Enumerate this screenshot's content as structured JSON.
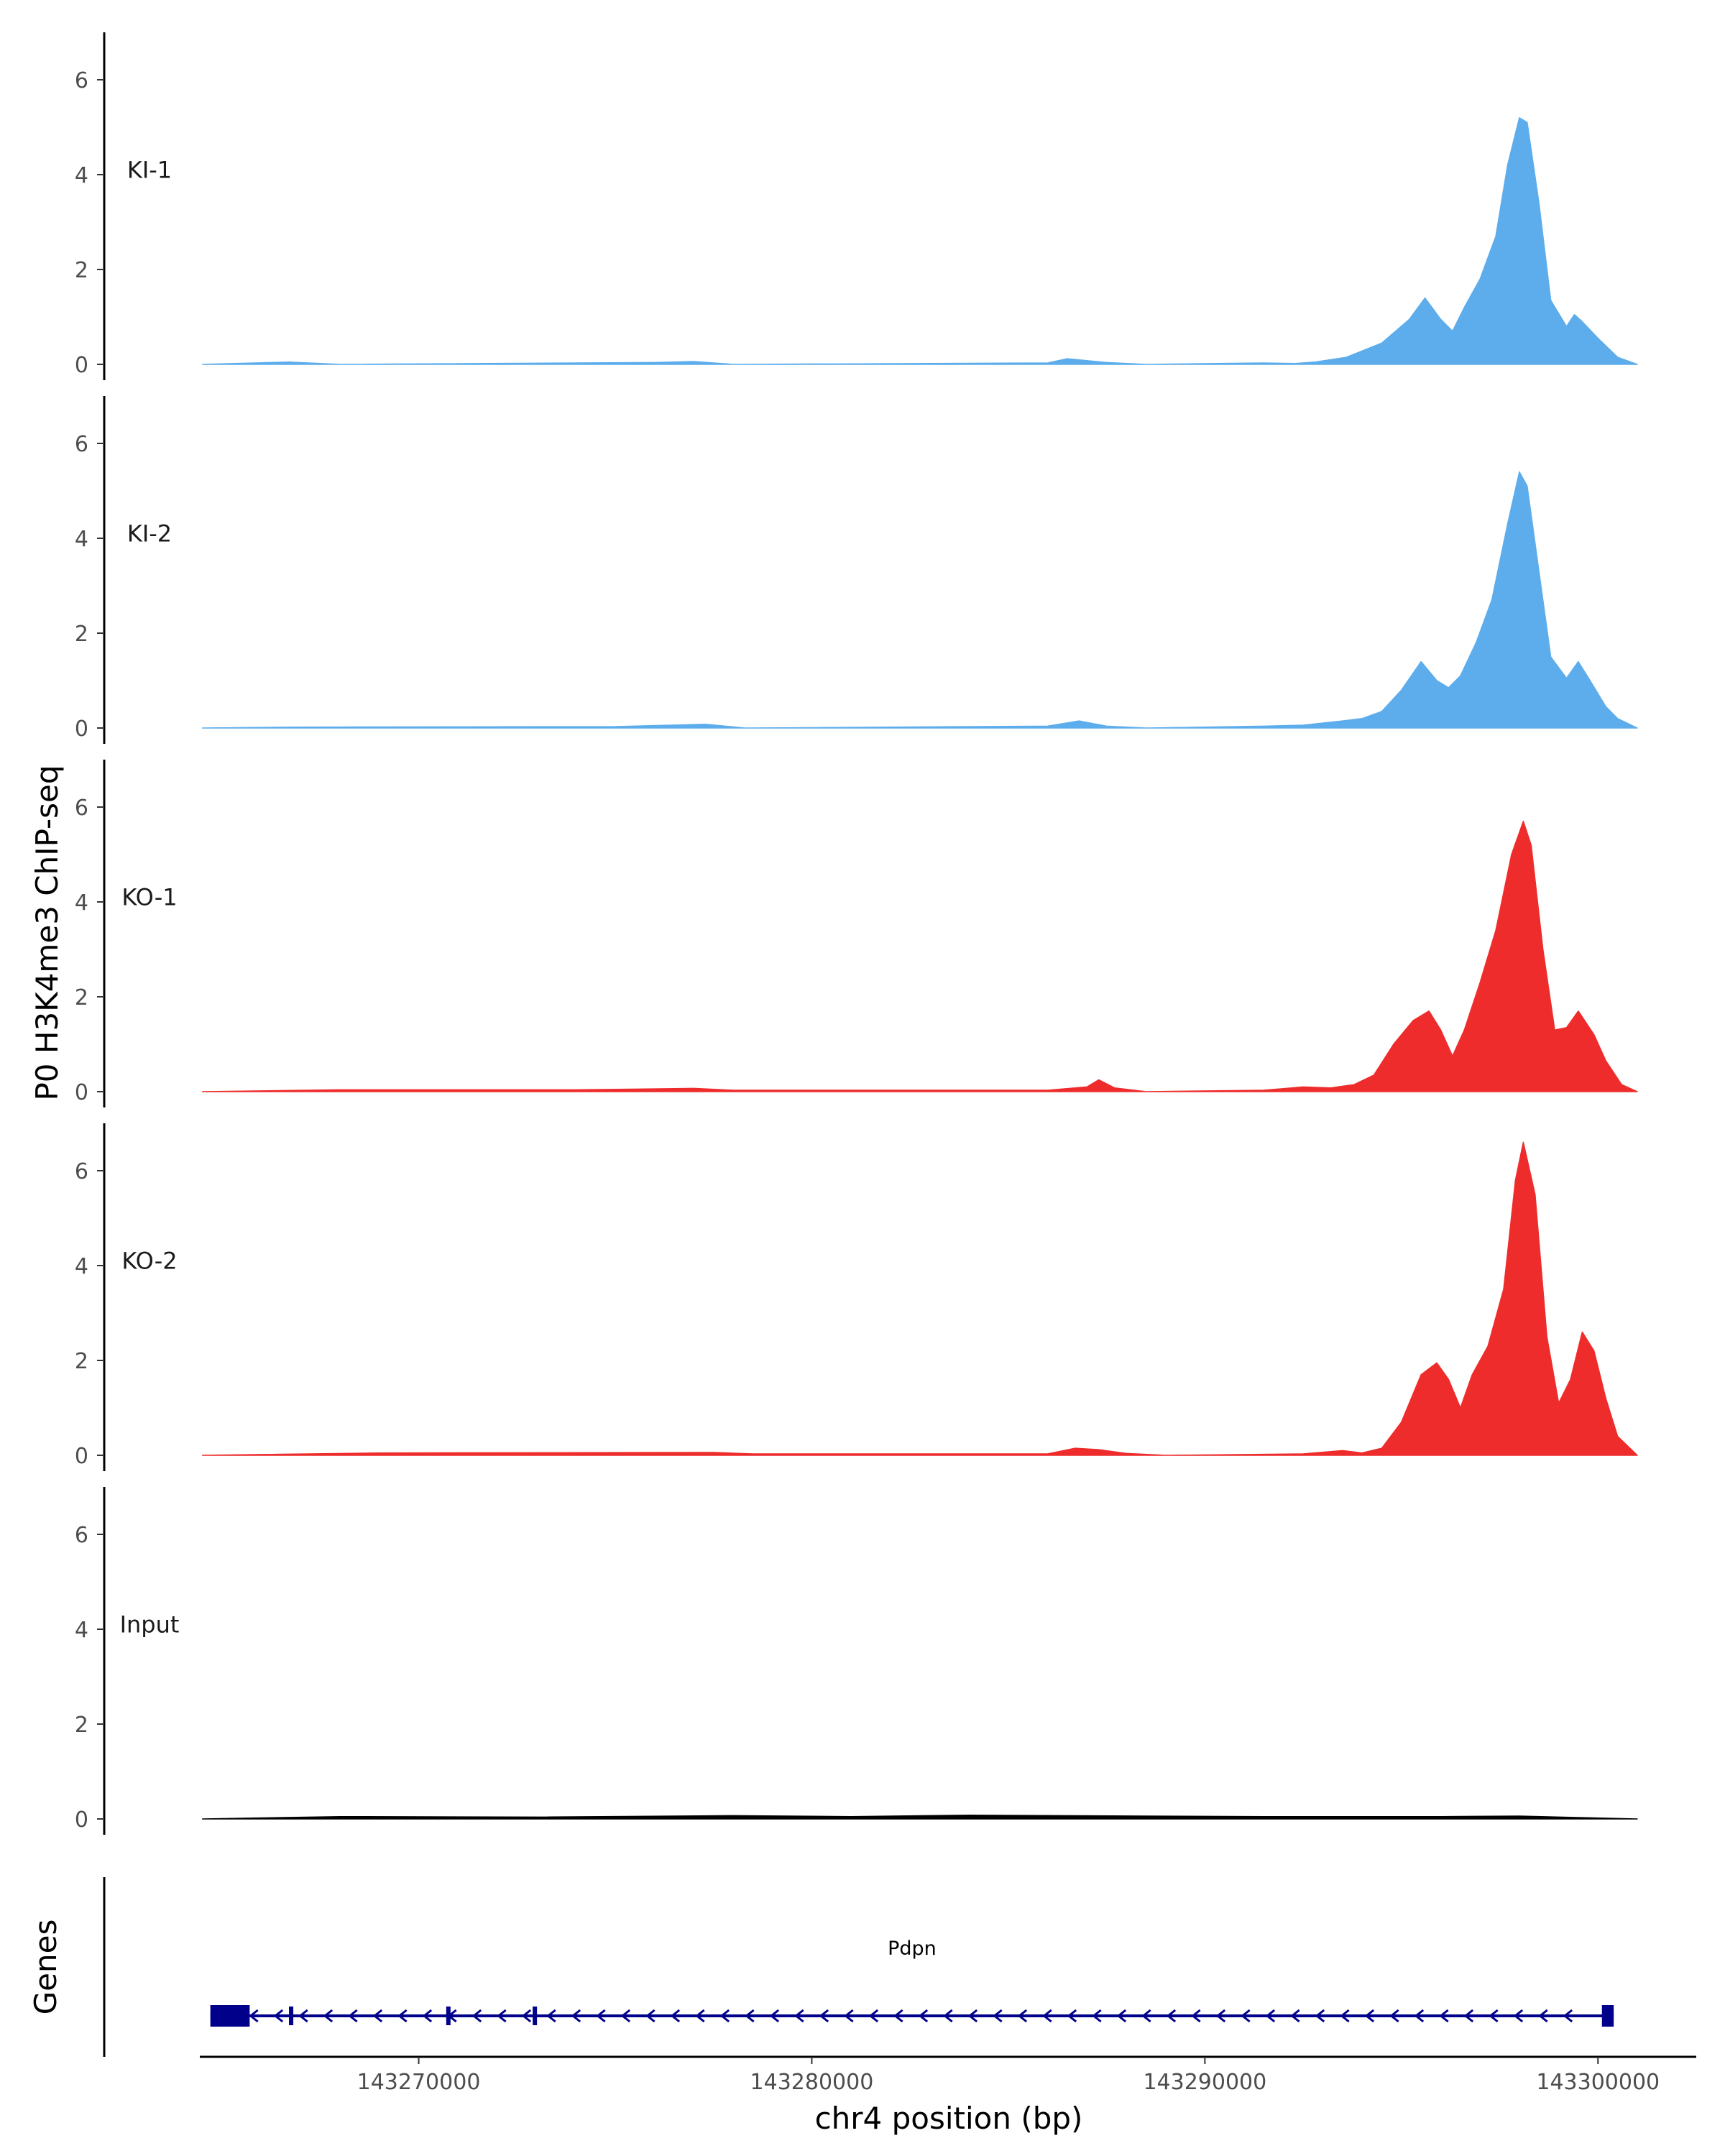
{
  "chart_data": {
    "type": "area",
    "title": "",
    "ylabel": "P0 H3K4me3 ChIP-seq",
    "xlabel": "chr4 position (bp)",
    "xlim": [
      143262000,
      143302500
    ],
    "ylim": [
      0,
      7
    ],
    "yticks": [
      0,
      2,
      4,
      6
    ],
    "xticks": [
      143270000,
      143280000,
      143290000,
      143300000
    ],
    "xtick_labels": [
      "143270000",
      "143280000",
      "143290000",
      "143300000"
    ],
    "signal_range": [
      143264500,
      143301000
    ],
    "tracks": [
      {
        "name": "KI-1",
        "color": "#5DADEC",
        "points": [
          [
            143264500,
            0
          ],
          [
            143266700,
            0.05
          ],
          [
            143268000,
            0
          ],
          [
            143276000,
            0.04
          ],
          [
            143277000,
            0.06
          ],
          [
            143278000,
            0
          ],
          [
            143286000,
            0.03
          ],
          [
            143286500,
            0.12
          ],
          [
            143287500,
            0.04
          ],
          [
            143288500,
            0
          ],
          [
            143291500,
            0.03
          ],
          [
            143292300,
            0.02
          ],
          [
            143292800,
            0.05
          ],
          [
            143293600,
            0.15
          ],
          [
            143294500,
            0.45
          ],
          [
            143295200,
            0.95
          ],
          [
            143295600,
            1.4
          ],
          [
            143296000,
            0.95
          ],
          [
            143296300,
            0.7
          ],
          [
            143296600,
            1.2
          ],
          [
            143297000,
            1.8
          ],
          [
            143297400,
            2.7
          ],
          [
            143297700,
            4.2
          ],
          [
            143298000,
            5.2
          ],
          [
            143298200,
            5.1
          ],
          [
            143298500,
            3.4
          ],
          [
            143298800,
            1.35
          ],
          [
            143299200,
            0.8
          ],
          [
            143299400,
            1.05
          ],
          [
            143299600,
            0.9
          ],
          [
            143300000,
            0.55
          ],
          [
            143300500,
            0.15
          ],
          [
            143301000,
            0
          ]
        ]
      },
      {
        "name": "KI-2",
        "color": "#5DADEC",
        "points": [
          [
            143264500,
            0
          ],
          [
            143267000,
            0.02
          ],
          [
            143275000,
            0.03
          ],
          [
            143277300,
            0.08
          ],
          [
            143278300,
            0
          ],
          [
            143286000,
            0.04
          ],
          [
            143286800,
            0.15
          ],
          [
            143287500,
            0.04
          ],
          [
            143288500,
            0
          ],
          [
            143291500,
            0.04
          ],
          [
            143292500,
            0.06
          ],
          [
            143293500,
            0.15
          ],
          [
            143294000,
            0.2
          ],
          [
            143294500,
            0.35
          ],
          [
            143295000,
            0.8
          ],
          [
            143295500,
            1.4
          ],
          [
            143295900,
            1.0
          ],
          [
            143296200,
            0.85
          ],
          [
            143296500,
            1.1
          ],
          [
            143296900,
            1.8
          ],
          [
            143297300,
            2.7
          ],
          [
            143297700,
            4.3
          ],
          [
            143298000,
            5.4
          ],
          [
            143298200,
            5.1
          ],
          [
            143298500,
            3.3
          ],
          [
            143298800,
            1.5
          ],
          [
            143299200,
            1.05
          ],
          [
            143299500,
            1.4
          ],
          [
            143299800,
            1.0
          ],
          [
            143300200,
            0.45
          ],
          [
            143300500,
            0.2
          ],
          [
            143301000,
            0
          ]
        ]
      },
      {
        "name": "KO-1",
        "color": "#EE2C2C",
        "points": [
          [
            143264500,
            0
          ],
          [
            143268000,
            0.04
          ],
          [
            143274000,
            0.04
          ],
          [
            143277000,
            0.07
          ],
          [
            143278000,
            0.03
          ],
          [
            143286000,
            0.03
          ],
          [
            143287000,
            0.1
          ],
          [
            143287300,
            0.25
          ],
          [
            143287700,
            0.08
          ],
          [
            143288500,
            0
          ],
          [
            143291500,
            0.03
          ],
          [
            143292500,
            0.1
          ],
          [
            143293200,
            0.08
          ],
          [
            143293800,
            0.15
          ],
          [
            143294300,
            0.35
          ],
          [
            143294800,
            1.0
          ],
          [
            143295300,
            1.5
          ],
          [
            143295700,
            1.7
          ],
          [
            143296000,
            1.3
          ],
          [
            143296300,
            0.75
          ],
          [
            143296600,
            1.3
          ],
          [
            143297000,
            2.3
          ],
          [
            143297400,
            3.4
          ],
          [
            143297800,
            5.0
          ],
          [
            143298100,
            5.7
          ],
          [
            143298300,
            5.2
          ],
          [
            143298600,
            3.0
          ],
          [
            143298900,
            1.3
          ],
          [
            143299200,
            1.35
          ],
          [
            143299500,
            1.7
          ],
          [
            143299900,
            1.2
          ],
          [
            143300200,
            0.65
          ],
          [
            143300600,
            0.15
          ],
          [
            143301000,
            0
          ]
        ]
      },
      {
        "name": "KO-2",
        "color": "#EE2C2C",
        "points": [
          [
            143264500,
            0
          ],
          [
            143269000,
            0.05
          ],
          [
            143277500,
            0.06
          ],
          [
            143278500,
            0.03
          ],
          [
            143286000,
            0.03
          ],
          [
            143286700,
            0.15
          ],
          [
            143287300,
            0.12
          ],
          [
            143288000,
            0.04
          ],
          [
            143289000,
            0
          ],
          [
            143292500,
            0.03
          ],
          [
            143293500,
            0.1
          ],
          [
            143294000,
            0.05
          ],
          [
            143294500,
            0.15
          ],
          [
            143295000,
            0.7
          ],
          [
            143295500,
            1.7
          ],
          [
            143295900,
            1.95
          ],
          [
            143296200,
            1.6
          ],
          [
            143296500,
            1.0
          ],
          [
            143296800,
            1.7
          ],
          [
            143297200,
            2.3
          ],
          [
            143297600,
            3.5
          ],
          [
            143297900,
            5.8
          ],
          [
            143298100,
            6.6
          ],
          [
            143298400,
            5.5
          ],
          [
            143298700,
            2.5
          ],
          [
            143299000,
            1.1
          ],
          [
            143299300,
            1.6
          ],
          [
            143299600,
            2.6
          ],
          [
            143299900,
            2.2
          ],
          [
            143300200,
            1.2
          ],
          [
            143300500,
            0.4
          ],
          [
            143301000,
            0
          ]
        ]
      },
      {
        "name": "Input",
        "color": "#000000",
        "points": [
          [
            143264500,
            0
          ],
          [
            143268000,
            0.05
          ],
          [
            143273000,
            0.04
          ],
          [
            143278000,
            0.07
          ],
          [
            143281000,
            0.05
          ],
          [
            143284000,
            0.08
          ],
          [
            143288500,
            0.06
          ],
          [
            143291500,
            0.05
          ],
          [
            143296000,
            0.05
          ],
          [
            143298000,
            0.06
          ],
          [
            143301000,
            0
          ]
        ]
      }
    ],
    "genes_panel": {
      "title": "Genes",
      "gene": "Pdpn",
      "color": "#00008B",
      "start": 143264700,
      "end": 143300400,
      "strand": "-",
      "exons": [
        [
          143264700,
          143265700
        ],
        [
          143266700,
          143266800
        ],
        [
          143270700,
          143270800
        ],
        [
          143272900,
          143273000
        ],
        [
          143300100,
          143300400
        ]
      ]
    }
  }
}
